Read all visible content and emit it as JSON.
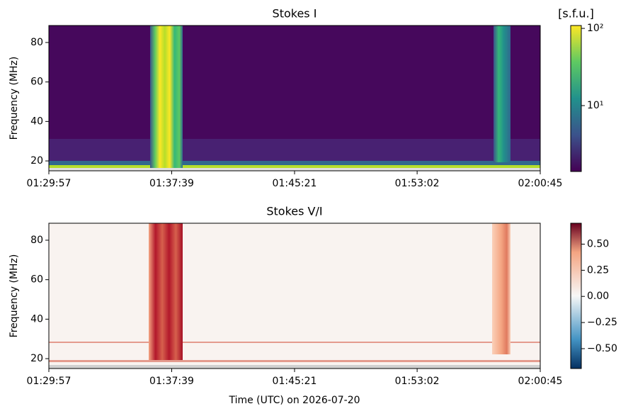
{
  "chart_data": [
    {
      "type": "heatmap",
      "title": "Stokes I",
      "ylabel": "Frequency (MHz)",
      "xlim": [
        5397,
        7245
      ],
      "xticks": [
        {
          "value": 5397,
          "label": "01:29:57"
        },
        {
          "value": 5859,
          "label": "01:37:39"
        },
        {
          "value": 6321,
          "label": "01:45:21"
        },
        {
          "value": 6782,
          "label": "01:53:02"
        },
        {
          "value": 7245,
          "label": "02:00:45"
        }
      ],
      "ylim": [
        15,
        88.6
      ],
      "yticks": [
        20,
        40,
        60,
        80
      ],
      "colorbar": {
        "label": "[s.f.u.]",
        "scale": "log",
        "colormap": "viridis",
        "lim": [
          1.4,
          109
        ],
        "ticks": [
          {
            "value": 10,
            "label": "10¹"
          },
          {
            "value": 100,
            "label": "10²"
          }
        ]
      }
    },
    {
      "type": "heatmap",
      "title": "Stokes V/I",
      "ylabel": "Frequency (MHz)",
      "xlabel": "Time (UTC) on 2026-07-20",
      "xlim": [
        5397,
        7245
      ],
      "xticks": [
        {
          "value": 5397,
          "label": "01:29:57"
        },
        {
          "value": 5859,
          "label": "01:37:39"
        },
        {
          "value": 6321,
          "label": "01:45:21"
        },
        {
          "value": 6782,
          "label": "01:53:02"
        },
        {
          "value": 7245,
          "label": "02:00:45"
        }
      ],
      "ylim": [
        15,
        88.6
      ],
      "yticks": [
        20,
        40,
        60,
        80
      ],
      "colorbar": {
        "scale": "linear",
        "colormap": "RdBu_r",
        "lim": [
          -0.69,
          0.7
        ],
        "ticks": [
          {
            "value": -0.5,
            "label": "−0.50"
          },
          {
            "value": -0.25,
            "label": "−0.25"
          },
          {
            "value": 0,
            "label": "0.00"
          },
          {
            "value": 0.25,
            "label": "0.25"
          },
          {
            "value": 0.5,
            "label": "0.50"
          }
        ]
      }
    }
  ]
}
